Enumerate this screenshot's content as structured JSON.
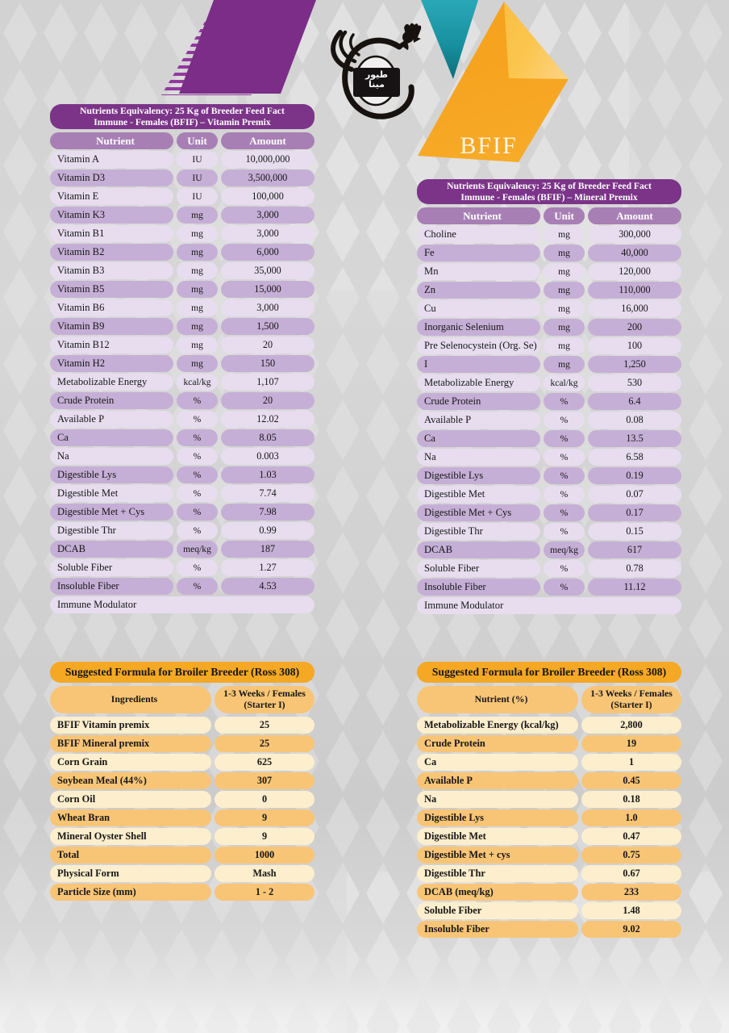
{
  "brand": {
    "badge": "BFIF",
    "logo_arabic_line1": "طيور",
    "logo_arabic_line2": "مينا"
  },
  "colors": {
    "purple_title": "#7b3488",
    "purple_header": "#a77fb5",
    "purple_row_dark": "#c6afd6",
    "purple_row_light": "#e7ddef",
    "orange_title": "#f5a824",
    "orange_row_dark": "#f8c577",
    "orange_row_light": "#fdeecd",
    "deco_purple": "#7b2d87",
    "deco_teal": "#18909f",
    "deco_orange": "#f6a623"
  },
  "vitamin_table": {
    "title_line1": "Nutrients Equivalency: 25 Kg of Breeder Feed Fact",
    "title_line2": "Immune - Females (BFIF) – Vitamin Premix",
    "headers": {
      "nutrient": "Nutrient",
      "unit": "Unit",
      "amount": "Amount"
    },
    "rows": [
      [
        "Vitamin A",
        "IU",
        "10,000,000"
      ],
      [
        "Vitamin D3",
        "IU",
        "3,500,000"
      ],
      [
        "Vitamin E",
        "IU",
        "100,000"
      ],
      [
        "Vitamin K3",
        "mg",
        "3,000"
      ],
      [
        "Vitamin B1",
        "mg",
        "3,000"
      ],
      [
        "Vitamin B2",
        "mg",
        "6,000"
      ],
      [
        "Vitamin B3",
        "mg",
        "35,000"
      ],
      [
        "Vitamin B5",
        "mg",
        "15,000"
      ],
      [
        "Vitamin B6",
        "mg",
        "3,000"
      ],
      [
        "Vitamin B9",
        "mg",
        "1,500"
      ],
      [
        "Vitamin B12",
        "mg",
        "20"
      ],
      [
        "Vitamin H2",
        "mg",
        "150"
      ],
      [
        "Metabolizable Energy",
        "kcal/kg",
        "1,107"
      ],
      [
        "Crude Protein",
        "%",
        "20"
      ],
      [
        "Available P",
        "%",
        "12.02"
      ],
      [
        "Ca",
        "%",
        "8.05"
      ],
      [
        "Na",
        "%",
        "0.003"
      ],
      [
        "Digestible Lys",
        "%",
        "1.03"
      ],
      [
        "Digestible Met",
        "%",
        "7.74"
      ],
      [
        "Digestible Met + Cys",
        "%",
        "7.98"
      ],
      [
        "Digestible Thr",
        "%",
        "0.99"
      ],
      [
        "DCAB",
        "meq/kg",
        "187"
      ],
      [
        "Soluble Fiber",
        "%",
        "1.27"
      ],
      [
        "Insoluble Fiber",
        "%",
        "4.53"
      ]
    ],
    "footer": "Immune Modulator"
  },
  "mineral_table": {
    "title_line1": "Nutrients Equivalency: 25 Kg of Breeder Feed Fact",
    "title_line2": "Immune - Females (BFIF) – Mineral Premix",
    "headers": {
      "nutrient": "Nutrient",
      "unit": "Unit",
      "amount": "Amount"
    },
    "rows": [
      [
        "Choline",
        "mg",
        "300,000"
      ],
      [
        "Fe",
        "mg",
        "40,000"
      ],
      [
        "Mn",
        "mg",
        "120,000"
      ],
      [
        "Zn",
        "mg",
        "110,000"
      ],
      [
        "Cu",
        "mg",
        "16,000"
      ],
      [
        "Inorganic Selenium",
        "mg",
        "200"
      ],
      [
        "Pre Selenocystein (Org. Se)",
        "mg",
        "100"
      ],
      [
        "I",
        "mg",
        "1,250"
      ],
      [
        "Metabolizable Energy",
        "kcal/kg",
        "530"
      ],
      [
        "Crude Protein",
        "%",
        "6.4"
      ],
      [
        "Available P",
        "%",
        "0.08"
      ],
      [
        "Ca",
        "%",
        "13.5"
      ],
      [
        "Na",
        "%",
        "6.58"
      ],
      [
        "Digestible Lys",
        "%",
        "0.19"
      ],
      [
        "Digestible Met",
        "%",
        "0.07"
      ],
      [
        "Digestible Met + Cys",
        "%",
        "0.17"
      ],
      [
        "Digestible Thr",
        "%",
        "0.15"
      ],
      [
        "DCAB",
        "meq/kg",
        "617"
      ],
      [
        "Soluble Fiber",
        "%",
        "0.78"
      ],
      [
        "Insoluble Fiber",
        "%",
        "11.12"
      ]
    ],
    "footer": "Immune Modulator"
  },
  "formula_ingredients_table": {
    "title": "Suggested Formula for Broiler Breeder (Ross 308)",
    "col1_header": "Ingredients",
    "col2_header_line1": "1-3 Weeks / Females",
    "col2_header_line2": "(Starter I)",
    "rows": [
      [
        "BFIF Vitamin premix",
        "25"
      ],
      [
        "BFIF Mineral premix",
        "25"
      ],
      [
        "Corn Grain",
        "625"
      ],
      [
        "Soybean Meal (44%)",
        "307"
      ],
      [
        "Corn Oil",
        "0"
      ],
      [
        "Wheat Bran",
        "9"
      ],
      [
        "Mineral Oyster Shell",
        "9"
      ],
      [
        "Total",
        "1000"
      ],
      [
        "Physical Form",
        "Mash"
      ],
      [
        "Particle Size (mm)",
        "1 - 2"
      ]
    ]
  },
  "formula_nutrients_table": {
    "title": "Suggested Formula for Broiler Breeder (Ross 308)",
    "col1_header": "Nutrient (%)",
    "col2_header_line1": "1-3 Weeks / Females",
    "col2_header_line2": "(Starter I)",
    "rows": [
      [
        "Metabolizable Energy (kcal/kg)",
        "2,800"
      ],
      [
        "Crude Protein",
        "19"
      ],
      [
        "Ca",
        "1"
      ],
      [
        "Available P",
        "0.45"
      ],
      [
        "Na",
        "0.18"
      ],
      [
        "Digestible Lys",
        "1.0"
      ],
      [
        "Digestible Met",
        "0.47"
      ],
      [
        "Digestible Met + cys",
        "0.75"
      ],
      [
        "Digestible Thr",
        "0.67"
      ],
      [
        "DCAB (meq/kg)",
        "233"
      ],
      [
        "Soluble Fiber",
        "1.48"
      ],
      [
        "Insoluble Fiber",
        "9.02"
      ]
    ]
  }
}
